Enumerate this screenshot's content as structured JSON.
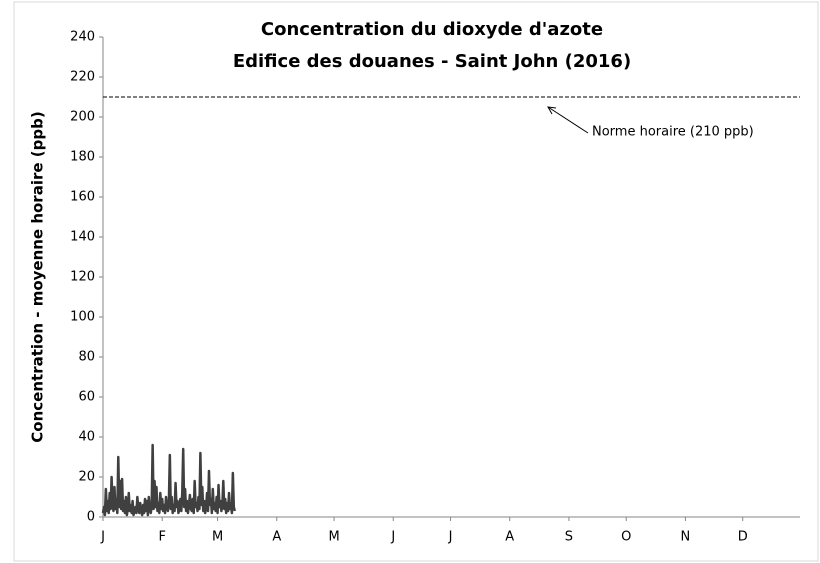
{
  "chart_data": {
    "type": "line",
    "title": "Concentration du dioxyde d'azote",
    "subtitle": "Edifice des douanes - Saint John (2016)",
    "y_label": "Concentration - moyenne horaire (ppb)",
    "xlim": [
      1,
      366
    ],
    "xticks": [
      {
        "value": 1,
        "label": "J"
      },
      {
        "value": 32,
        "label": "F"
      },
      {
        "value": 61,
        "label": "M"
      },
      {
        "value": 92,
        "label": "A"
      },
      {
        "value": 122,
        "label": "M"
      },
      {
        "value": 153,
        "label": "J"
      },
      {
        "value": 183,
        "label": "J"
      },
      {
        "value": 214,
        "label": "A"
      },
      {
        "value": 245,
        "label": "S"
      },
      {
        "value": 275,
        "label": "O"
      },
      {
        "value": 306,
        "label": "N"
      },
      {
        "value": 336,
        "label": "D"
      }
    ],
    "ylim": [
      0,
      240
    ],
    "yticks": [
      0,
      20,
      40,
      60,
      80,
      100,
      120,
      140,
      160,
      180,
      200,
      220,
      240
    ],
    "reference_line": {
      "value": 210,
      "label": "Norme horaire (210 ppb)"
    },
    "series": [
      {
        "color": "#404040",
        "x": [
          1,
          1.5,
          2,
          2.5,
          3,
          3.5,
          4,
          4.5,
          5,
          5.5,
          6,
          6.5,
          7,
          7.5,
          8,
          8.5,
          9,
          9.5,
          10,
          10.5,
          11,
          11.5,
          12,
          12.5,
          13,
          13.5,
          14,
          14.5,
          15,
          15.5,
          16,
          16.5,
          17,
          17.5,
          18,
          18.5,
          19,
          19.5,
          20,
          20.5,
          21,
          21.5,
          22,
          22.5,
          23,
          23.5,
          24,
          24.5,
          25,
          25.5,
          26,
          26.5,
          27,
          27.5,
          28,
          28.5,
          29,
          29.5,
          30,
          30.5,
          31,
          31.5,
          32,
          32.5,
          33,
          33.5,
          34,
          34.5,
          35,
          35.5,
          36,
          36.5,
          37,
          37.5,
          38,
          38.5,
          39,
          39.5,
          40,
          40.5,
          41,
          41.5,
          42,
          42.5,
          43,
          43.5,
          44,
          44.5,
          45,
          45.5,
          46,
          46.5,
          47,
          47.5,
          48,
          48.5,
          49,
          49.5,
          50,
          50.5,
          51,
          51.5,
          52,
          52.5,
          53,
          53.5,
          54,
          54.5,
          55,
          55.5,
          56,
          56.5,
          57,
          57.5,
          58,
          58.5,
          59,
          59.5,
          60,
          60.5,
          61,
          61.5,
          62,
          62.5,
          63,
          63.5,
          64,
          64.5,
          65,
          65.5,
          66,
          66.5,
          67,
          67.5,
          68,
          68.5,
          69,
          69.5,
          70
        ],
        "values": [
          2,
          5,
          1,
          14,
          3,
          8,
          2,
          12,
          4,
          20,
          6,
          3,
          15,
          4,
          9,
          2,
          30,
          5,
          18,
          4,
          19,
          3,
          8,
          2,
          10,
          1,
          4,
          12,
          3,
          6,
          2,
          8,
          1,
          3,
          5,
          2,
          10,
          4,
          2,
          7,
          3,
          1,
          6,
          2,
          9,
          3,
          8,
          1,
          10,
          4,
          2,
          5,
          36,
          4,
          18,
          5,
          15,
          3,
          7,
          2,
          12,
          4,
          9,
          3,
          6,
          2,
          10,
          5,
          3,
          8,
          31,
          4,
          10,
          2,
          6,
          3,
          17,
          5,
          8,
          2,
          4,
          9,
          3,
          12,
          34,
          5,
          14,
          3,
          8,
          2,
          6,
          11,
          4,
          3,
          9,
          2,
          18,
          5,
          7,
          3,
          10,
          4,
          32,
          6,
          15,
          3,
          8,
          2,
          5,
          12,
          3,
          23,
          6,
          9,
          2,
          14,
          4,
          7,
          3,
          10,
          2,
          16,
          5,
          8,
          3,
          6,
          18,
          4,
          9,
          2,
          7,
          3,
          12,
          4,
          6,
          2,
          22,
          5,
          3
        ]
      }
    ]
  }
}
